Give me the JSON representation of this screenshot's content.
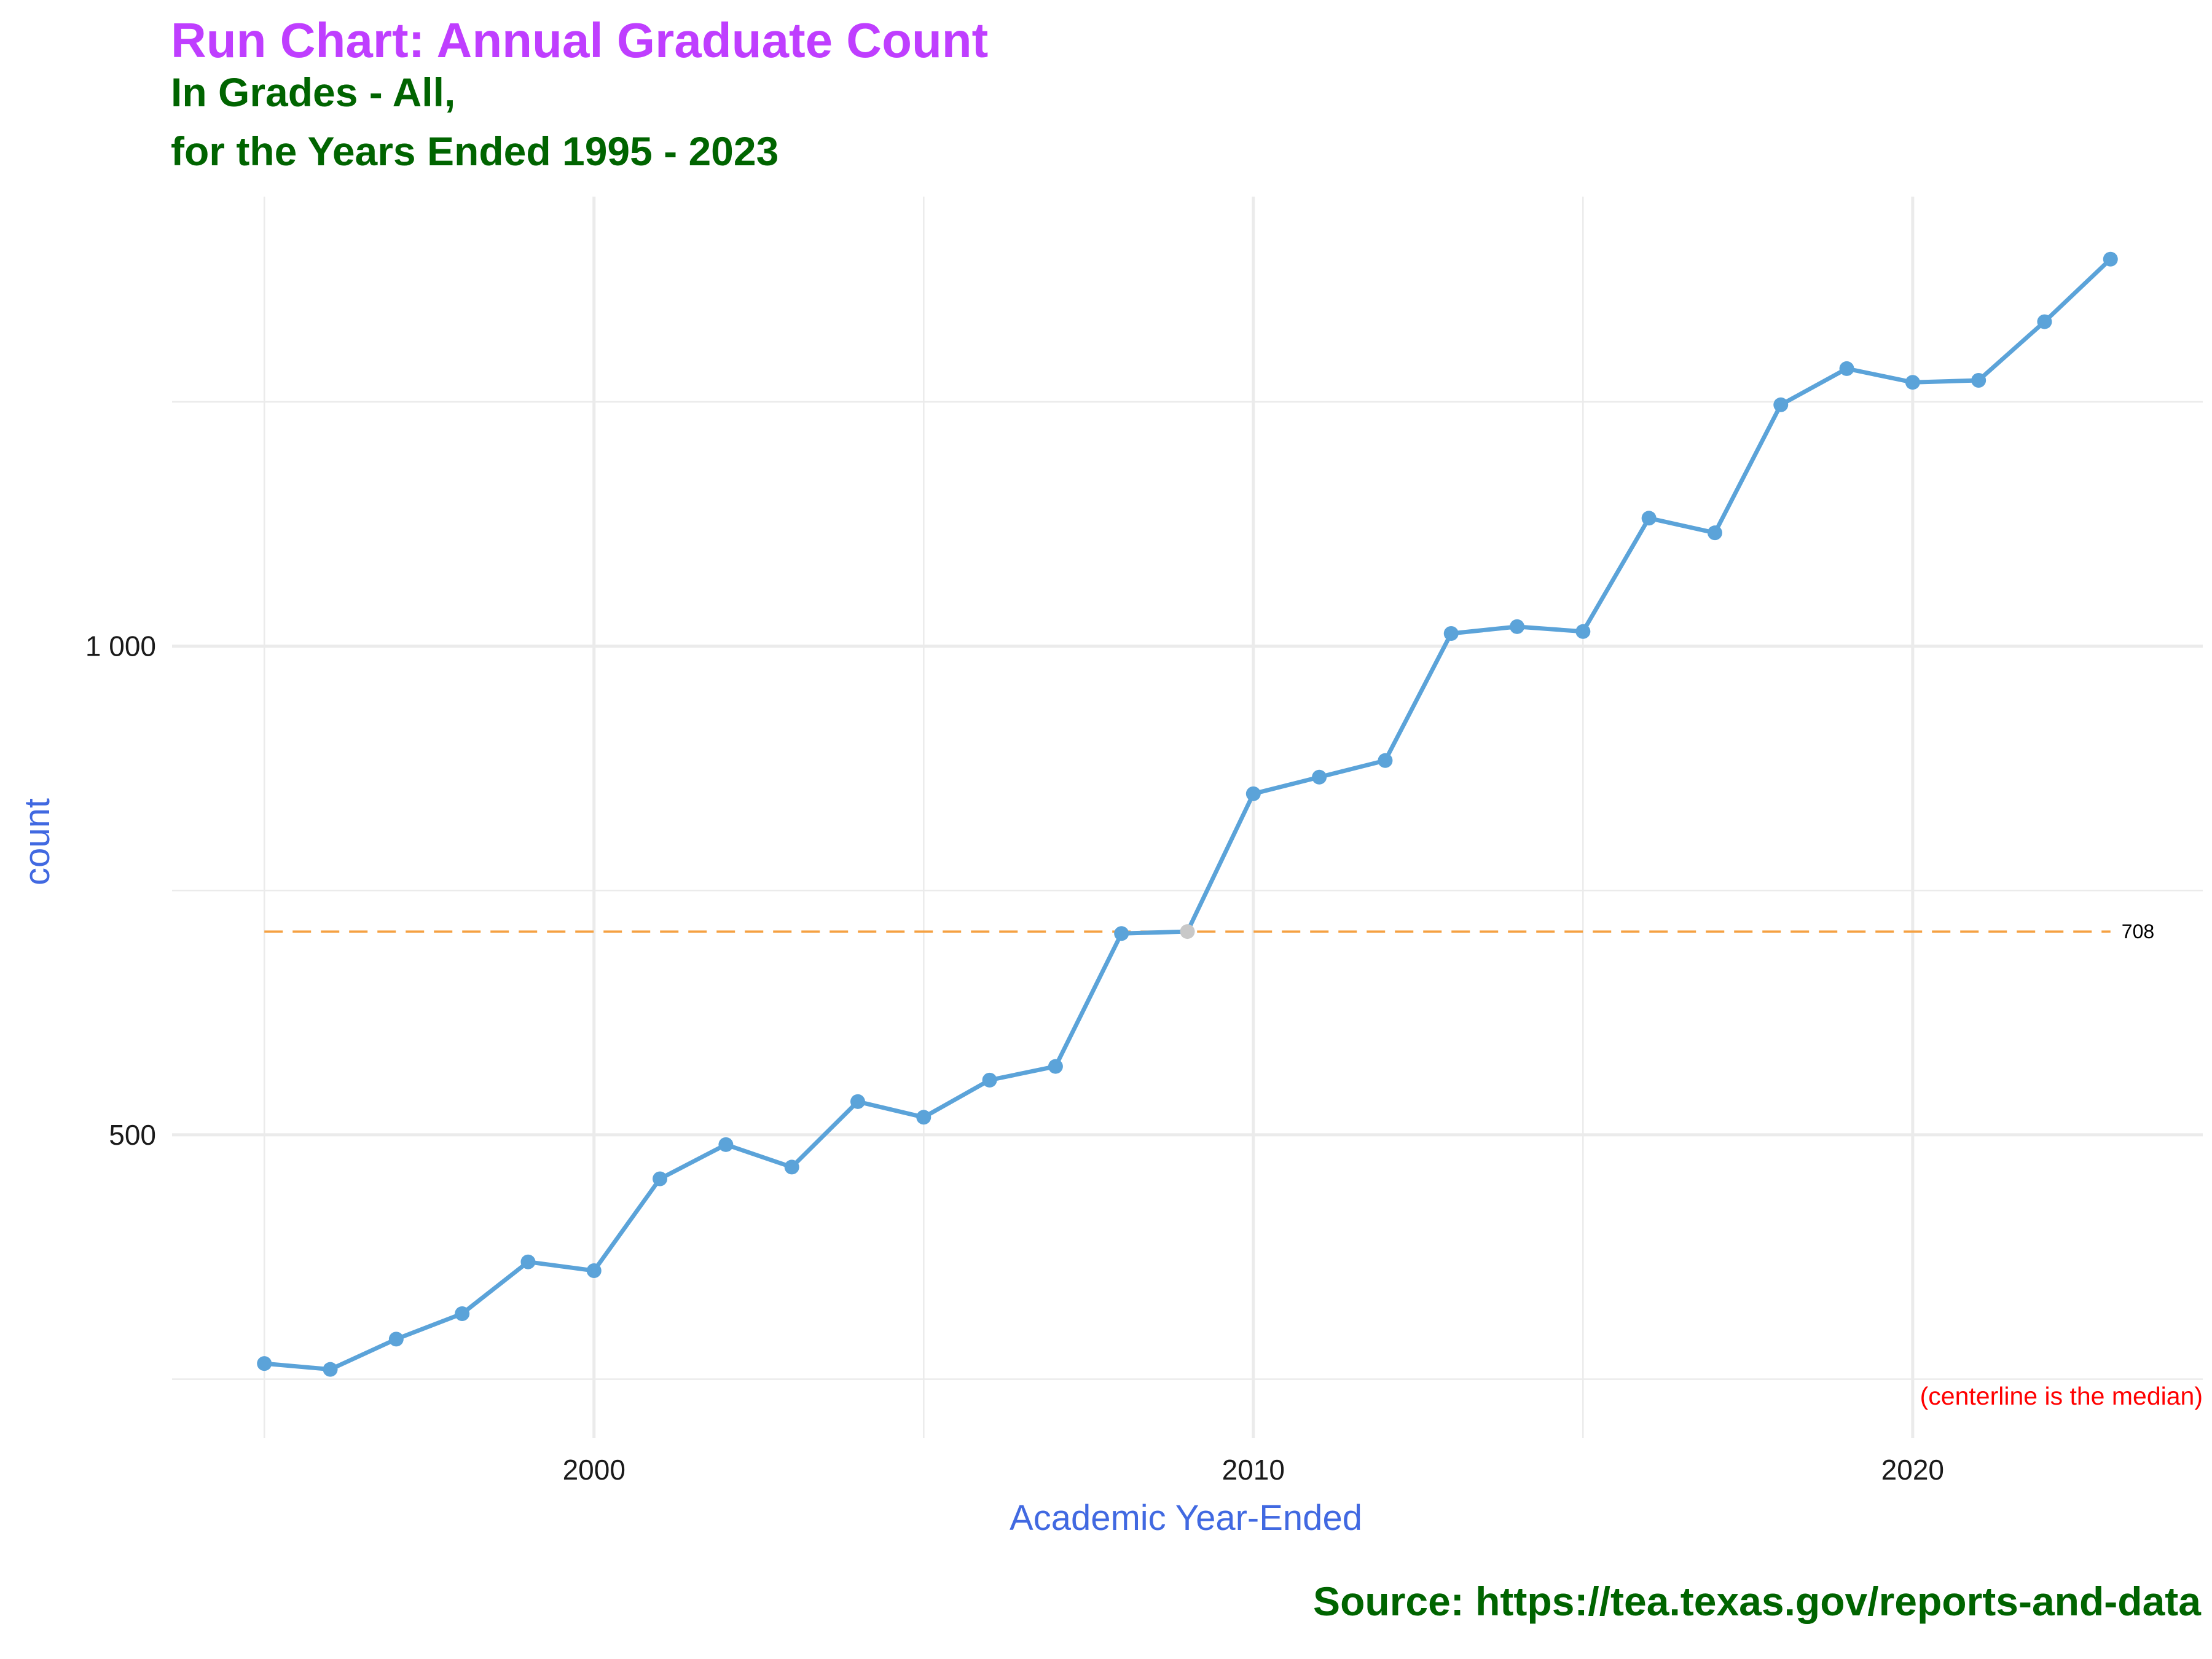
{
  "title": "Run Chart: Annual Graduate Count",
  "subtitle_line1": "In Grades - All,",
  "subtitle_line2": "for the Years Ended 1995 - 2023",
  "caption": "Source:  https://tea.texas.gov/reports-and-data",
  "colors": {
    "title": "#bf3eff",
    "subtitle": "#006400",
    "axis_title": "#4169e1",
    "line": "#5ba3d9",
    "highlight_point": "#c8c8c8",
    "median_line": "#f5a142",
    "note": "#ff0000",
    "grid": "#ebebeb"
  },
  "chart_data": {
    "type": "line",
    "xlabel": "Academic Year-Ended",
    "ylabel": "count",
    "xlim": [
      1993.6,
      2024.4
    ],
    "ylim": [
      190,
      1460
    ],
    "x_ticks": [
      2000,
      2010,
      2020
    ],
    "x_tick_labels": [
      "2000",
      "2010",
      "2020"
    ],
    "x_minor_ticks": [
      1995,
      2005,
      2015,
      2025
    ],
    "y_ticks": [
      500,
      1000
    ],
    "y_tick_labels": [
      "500",
      "1 000"
    ],
    "y_minor_ticks": [
      250,
      750,
      1250
    ],
    "grid": true,
    "legend": "none",
    "x": [
      1995,
      1996,
      1997,
      1998,
      1999,
      2000,
      2001,
      2002,
      2003,
      2004,
      2005,
      2006,
      2007,
      2008,
      2009,
      2010,
      2011,
      2012,
      2013,
      2014,
      2015,
      2016,
      2017,
      2018,
      2019,
      2020,
      2021,
      2022,
      2023
    ],
    "y": [
      266,
      260,
      291,
      317,
      370,
      361,
      455,
      490,
      467,
      534,
      518,
      556,
      570,
      706,
      708,
      849,
      866,
      883,
      1013,
      1020,
      1015,
      1131,
      1116,
      1247,
      1284,
      1270,
      1272,
      1332,
      1396
    ],
    "highlight_index": 14,
    "median": 708,
    "median_label": "708",
    "note": "(centerline is the median)"
  }
}
